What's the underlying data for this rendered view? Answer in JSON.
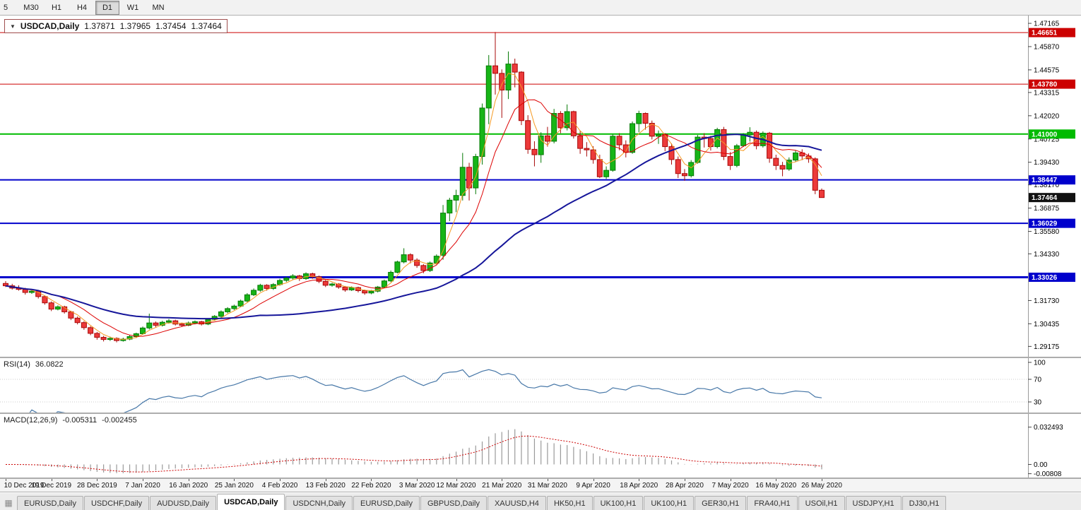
{
  "toolbar": {
    "timeframes": [
      "5",
      "M30",
      "H1",
      "H4",
      "D1",
      "W1",
      "MN"
    ],
    "active_timeframe": "D1"
  },
  "icons": {
    "dropdown": "▼",
    "tab_strip": "▦"
  },
  "chart_title": {
    "symbol": "USDCAD,Daily",
    "open": "1.37871",
    "high": "1.37965",
    "low": "1.37454",
    "close": "1.37464"
  },
  "price_axis": {
    "ticks": [
      "1.47165",
      "1.45870",
      "1.44575",
      "1.43315",
      "1.42020",
      "1.40725",
      "1.39430",
      "1.38170",
      "1.36875",
      "1.35580",
      "1.34330",
      "1.31730",
      "1.30435",
      "1.29175"
    ],
    "current_price": {
      "value": "1.37464",
      "bg": "#111111"
    }
  },
  "chart_data": {
    "type": "candlestick",
    "symbol": "USDCAD",
    "period": "Daily",
    "ylim": [
      1.286,
      1.476
    ],
    "colors": {
      "up_fill": "#17b517",
      "up_stroke": "#067a06",
      "down_fill": "#ec3a3a",
      "down_stroke": "#a80909"
    },
    "horizontal_lines": [
      {
        "price": 1.46651,
        "label": "1.46651",
        "color": "#CC0000",
        "width": 1
      },
      {
        "price": 1.4378,
        "label": "1.43780",
        "color": "#CC0000",
        "width": 1
      },
      {
        "price": 1.41,
        "label": "1.41000",
        "color": "#00BB00",
        "width": 2
      },
      {
        "price": 1.38447,
        "label": "1.38447",
        "color": "#0000CC",
        "width": 2
      },
      {
        "price": 1.36029,
        "label": "1.36029",
        "color": "#0000CC",
        "width": 2
      },
      {
        "price": 1.33026,
        "label": "1.33026",
        "color": "#0000CC",
        "width": 3
      }
    ],
    "current_price": 1.37464,
    "ma_lines": [
      {
        "period": 4,
        "color": "#f59a23",
        "width": 1
      },
      {
        "period": 9,
        "color": "#dd0000",
        "width": 1
      },
      {
        "period": 40,
        "color": "#16169a",
        "width": 2
      }
    ],
    "x_labels": [
      "10 Dec 2019",
      "19 Dec 2019",
      "28 Dec 2019",
      "7 Jan 2020",
      "16 Jan 2020",
      "25 Jan 2020",
      "4 Feb 2020",
      "13 Feb 2020",
      "22 Feb 2020",
      "3 Mar 2020",
      "12 Mar 2020",
      "21 Mar 2020",
      "31 Mar 2020",
      "9 Apr 2020",
      "18 Apr 2020",
      "28 Apr 2020",
      "7 May 2020",
      "16 May 2020",
      "26 May 2020"
    ],
    "candles": [
      [
        1.3268,
        1.3281,
        1.3248,
        1.3255
      ],
      [
        1.3255,
        1.3266,
        1.3234,
        1.3242
      ],
      [
        1.3242,
        1.3258,
        1.3228,
        1.3235
      ],
      [
        1.3235,
        1.3244,
        1.3206,
        1.3218
      ],
      [
        1.3218,
        1.3232,
        1.321,
        1.3225
      ],
      [
        1.3225,
        1.323,
        1.3184,
        1.3195
      ],
      [
        1.3195,
        1.3202,
        1.315,
        1.316
      ],
      [
        1.316,
        1.3168,
        1.3114,
        1.3125
      ],
      [
        1.3125,
        1.3146,
        1.3118,
        1.3138
      ],
      [
        1.3138,
        1.3144,
        1.31,
        1.311
      ],
      [
        1.311,
        1.3116,
        1.3064,
        1.3075
      ],
      [
        1.3075,
        1.3084,
        1.304,
        1.305
      ],
      [
        1.305,
        1.3058,
        1.301,
        1.3022
      ],
      [
        1.3022,
        1.303,
        1.298,
        1.299
      ],
      [
        1.299,
        1.2998,
        1.2955,
        1.2968
      ],
      [
        1.2968,
        1.2976,
        1.2945,
        1.2956
      ],
      [
        1.2956,
        1.2972,
        1.2948,
        1.2962
      ],
      [
        1.2962,
        1.2968,
        1.294,
        1.295
      ],
      [
        1.295,
        1.2966,
        1.2944,
        1.2958
      ],
      [
        1.2958,
        1.298,
        1.2952,
        1.2972
      ],
      [
        1.2972,
        1.2994,
        1.2964,
        1.2988
      ],
      [
        1.2988,
        1.3028,
        1.2982,
        1.302
      ],
      [
        1.302,
        1.31,
        1.3012,
        1.3048
      ],
      [
        1.3048,
        1.3056,
        1.3022,
        1.3035
      ],
      [
        1.3035,
        1.306,
        1.3028,
        1.3052
      ],
      [
        1.3052,
        1.307,
        1.3044,
        1.306
      ],
      [
        1.306,
        1.3066,
        1.3034,
        1.3042
      ],
      [
        1.3042,
        1.305,
        1.3026,
        1.3035
      ],
      [
        1.3035,
        1.3056,
        1.303,
        1.3048
      ],
      [
        1.3048,
        1.3062,
        1.304,
        1.3055
      ],
      [
        1.3055,
        1.306,
        1.3034,
        1.3042
      ],
      [
        1.3042,
        1.3074,
        1.3036,
        1.3068
      ],
      [
        1.3068,
        1.3092,
        1.306,
        1.3085
      ],
      [
        1.3085,
        1.3118,
        1.3078,
        1.311
      ],
      [
        1.311,
        1.3136,
        1.3102,
        1.3128
      ],
      [
        1.3128,
        1.315,
        1.312,
        1.3142
      ],
      [
        1.3142,
        1.3178,
        1.3136,
        1.317
      ],
      [
        1.317,
        1.3214,
        1.3164,
        1.3205
      ],
      [
        1.3205,
        1.324,
        1.3198,
        1.323
      ],
      [
        1.323,
        1.3266,
        1.3222,
        1.3258
      ],
      [
        1.3258,
        1.3264,
        1.3228,
        1.324
      ],
      [
        1.324,
        1.327,
        1.3232,
        1.3262
      ],
      [
        1.3262,
        1.3294,
        1.3255,
        1.3285
      ],
      [
        1.3285,
        1.3306,
        1.3276,
        1.3298
      ],
      [
        1.3298,
        1.332,
        1.3288,
        1.331
      ],
      [
        1.331,
        1.3316,
        1.3282,
        1.3295
      ],
      [
        1.3295,
        1.333,
        1.3288,
        1.3322
      ],
      [
        1.3322,
        1.3328,
        1.3294,
        1.3305
      ],
      [
        1.3305,
        1.3312,
        1.327,
        1.328
      ],
      [
        1.328,
        1.3288,
        1.3248,
        1.3258
      ],
      [
        1.3258,
        1.3272,
        1.325,
        1.3265
      ],
      [
        1.3265,
        1.327,
        1.3238,
        1.3248
      ],
      [
        1.3248,
        1.3254,
        1.3222,
        1.3232
      ],
      [
        1.3232,
        1.3252,
        1.3226,
        1.3245
      ],
      [
        1.3245,
        1.325,
        1.3218,
        1.3228
      ],
      [
        1.3228,
        1.3234,
        1.3205,
        1.3215
      ],
      [
        1.3215,
        1.3232,
        1.3208,
        1.3225
      ],
      [
        1.3225,
        1.3254,
        1.3218,
        1.3248
      ],
      [
        1.3248,
        1.329,
        1.3242,
        1.3282
      ],
      [
        1.3282,
        1.334,
        1.3276,
        1.333
      ],
      [
        1.333,
        1.3395,
        1.3324,
        1.3388
      ],
      [
        1.3388,
        1.3464,
        1.338,
        1.3428
      ],
      [
        1.3428,
        1.3436,
        1.338,
        1.3398
      ],
      [
        1.3398,
        1.3408,
        1.3355,
        1.3368
      ],
      [
        1.3368,
        1.3376,
        1.3325,
        1.334
      ],
      [
        1.334,
        1.339,
        1.3332,
        1.3382
      ],
      [
        1.3382,
        1.343,
        1.3374,
        1.342
      ],
      [
        1.3425,
        1.3705,
        1.34,
        1.366
      ],
      [
        1.366,
        1.3745,
        1.3615,
        1.3732
      ],
      [
        1.3732,
        1.379,
        1.3665,
        1.3758
      ],
      [
        1.3758,
        1.3995,
        1.373,
        1.3915
      ],
      [
        1.3915,
        1.394,
        1.373,
        1.38
      ],
      [
        1.38,
        1.399,
        1.3765,
        1.3975
      ],
      [
        1.3975,
        1.427,
        1.393,
        1.4245
      ],
      [
        1.4245,
        1.454,
        1.4155,
        1.448
      ],
      [
        1.448,
        1.4668,
        1.432,
        1.4438
      ],
      [
        1.4438,
        1.446,
        1.419,
        1.4345
      ],
      [
        1.4345,
        1.456,
        1.4295,
        1.449
      ],
      [
        1.449,
        1.452,
        1.436,
        1.4445
      ],
      [
        1.4445,
        1.445,
        1.415,
        1.4175
      ],
      [
        1.4175,
        1.4205,
        1.399,
        1.4015
      ],
      [
        1.4015,
        1.406,
        1.392,
        1.3985
      ],
      [
        1.3985,
        1.411,
        1.394,
        1.409
      ],
      [
        1.409,
        1.414,
        1.403,
        1.406
      ],
      [
        1.406,
        1.424,
        1.4048,
        1.4215
      ],
      [
        1.4215,
        1.4228,
        1.4105,
        1.4135
      ],
      [
        1.4135,
        1.4265,
        1.412,
        1.4225
      ],
      [
        1.4225,
        1.423,
        1.4075,
        1.409
      ],
      [
        1.409,
        1.412,
        1.399,
        1.402
      ],
      [
        1.402,
        1.4055,
        1.3975,
        1.4012
      ],
      [
        1.4012,
        1.4032,
        1.3935,
        1.3958
      ],
      [
        1.3958,
        1.3985,
        1.3855,
        1.3862
      ],
      [
        1.3862,
        1.392,
        1.385,
        1.3898
      ],
      [
        1.3898,
        1.4098,
        1.389,
        1.4088
      ],
      [
        1.4088,
        1.4105,
        1.401,
        1.404
      ],
      [
        1.404,
        1.4065,
        1.397,
        1.3998
      ],
      [
        1.3998,
        1.417,
        1.399,
        1.4158
      ],
      [
        1.4158,
        1.423,
        1.411,
        1.4215
      ],
      [
        1.4215,
        1.422,
        1.4125,
        1.416
      ],
      [
        1.416,
        1.4175,
        1.407,
        1.4088
      ],
      [
        1.4088,
        1.412,
        1.4045,
        1.4098
      ],
      [
        1.4098,
        1.4105,
        1.4005,
        1.403
      ],
      [
        1.403,
        1.4048,
        1.393,
        1.3958
      ],
      [
        1.3958,
        1.3975,
        1.3855,
        1.388
      ],
      [
        1.388,
        1.3905,
        1.384,
        1.3868
      ],
      [
        1.3868,
        1.3955,
        1.3858,
        1.3942
      ],
      [
        1.3942,
        1.4095,
        1.3935,
        1.4083
      ],
      [
        1.4083,
        1.4105,
        1.4025,
        1.4075
      ],
      [
        1.4075,
        1.409,
        1.4008,
        1.403
      ],
      [
        1.403,
        1.4135,
        1.402,
        1.4125
      ],
      [
        1.4125,
        1.414,
        1.3955,
        1.3975
      ],
      [
        1.3975,
        1.4,
        1.39,
        1.3925
      ],
      [
        1.3925,
        1.4045,
        1.3915,
        1.4035
      ],
      [
        1.4035,
        1.4105,
        1.4028,
        1.4095
      ],
      [
        1.4095,
        1.4138,
        1.4058,
        1.411
      ],
      [
        1.411,
        1.412,
        1.4015,
        1.4035
      ],
      [
        1.4035,
        1.4115,
        1.4025,
        1.4105
      ],
      [
        1.4105,
        1.4112,
        1.394,
        1.3965
      ],
      [
        1.3965,
        1.3985,
        1.39,
        1.3925
      ],
      [
        1.3925,
        1.3945,
        1.3865,
        1.3905
      ],
      [
        1.3905,
        1.397,
        1.3895,
        1.3955
      ],
      [
        1.3955,
        1.401,
        1.3945,
        1.3995
      ],
      [
        1.3995,
        1.4015,
        1.3955,
        1.3978
      ],
      [
        1.3978,
        1.3992,
        1.394,
        1.3962
      ],
      [
        1.3962,
        1.397,
        1.3765,
        1.3787
      ],
      [
        1.37871,
        1.37965,
        1.37454,
        1.37464
      ]
    ]
  },
  "rsi_pane": {
    "label": "RSI(14)",
    "value": "36.0822",
    "axis_labels": [
      "100",
      "70",
      "30"
    ],
    "axis_values": [
      100,
      70,
      30
    ],
    "levels": [
      70,
      30
    ],
    "line_color": "#4878a8"
  },
  "macd_pane": {
    "label": "MACD(12,26,9)",
    "value_main": "-0.005311",
    "value_signal": "-0.002455",
    "axis_labels": [
      "0.032493",
      "0.00",
      "-0.00808"
    ],
    "axis_values": [
      0.032493,
      0,
      -0.00808
    ],
    "hist_color": "#9a9a9a",
    "signal_color": "#cc0000"
  },
  "tab_bar": {
    "active_index": 3,
    "tabs": [
      "EURUSD,Daily",
      "USDCHF,Daily",
      "AUDUSD,Daily",
      "USDCAD,Daily",
      "USDCNH,Daily",
      "EURUSD,Daily",
      "GBPUSD,Daily",
      "XAUUSD,H4",
      "HK50,H1",
      "UK100,H1",
      "UK100,H1",
      "GER30,H1",
      "FRA40,H1",
      "USOil,H1",
      "USDJPY,H1",
      "DJ30,H1"
    ]
  }
}
